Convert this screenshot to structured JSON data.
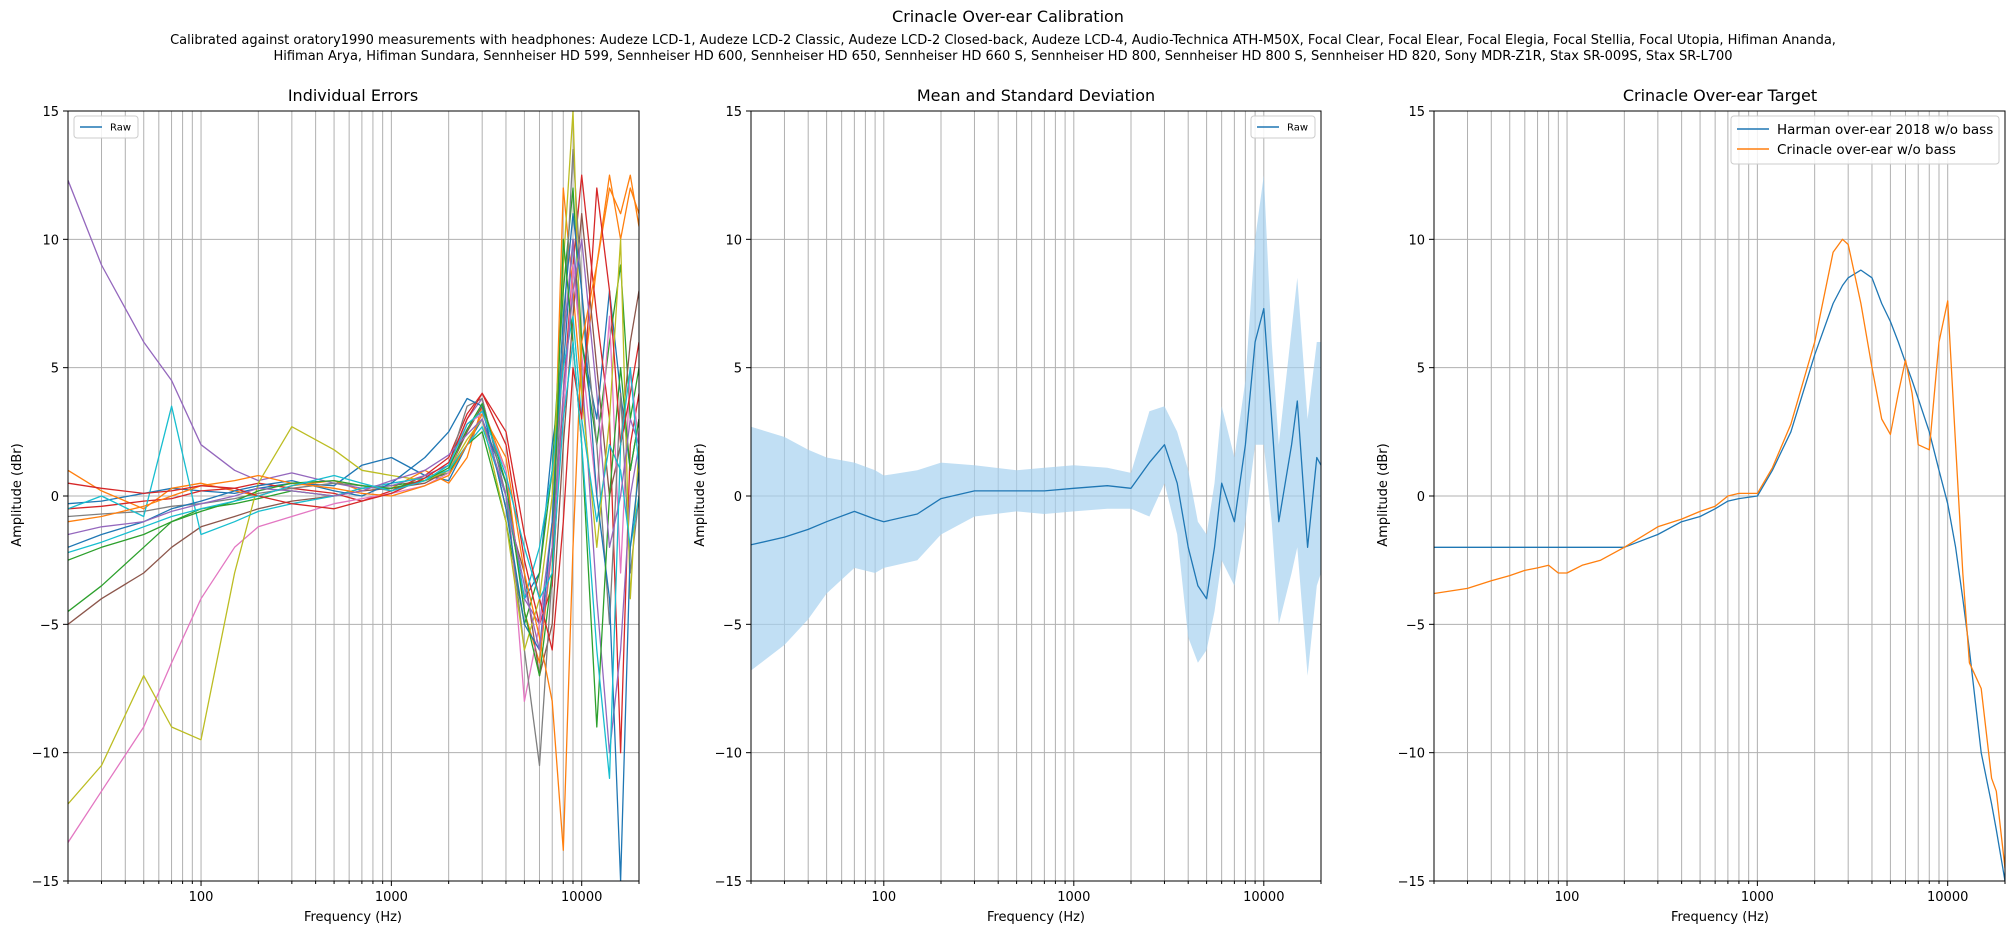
{
  "figure": {
    "title": "Crinacle Over-ear Calibration",
    "subtitle_line1": "Calibrated against oratory1990 measurements with headphones: Audeze LCD-1, Audeze LCD-2 Classic, Audeze LCD-2 Closed-back, Audeze LCD-4, Audio-Technica ATH-M50X, Focal Clear, Focal Elear, Focal Elegia, Focal Stellia, Focal Utopia, Hifiman Ananda,",
    "subtitle_line2": "Hifiman Arya, Hifiman Sundara, Sennheiser HD 599, Sennheiser HD 600, Sennheiser HD 650, Sennheiser HD 660 S, Sennheiser HD 800, Sennheiser HD 800 S, Sennheiser HD 820, Sony MDR-Z1R, Stax SR-009S, Stax SR-L700"
  },
  "colors": {
    "blue": "#1f77b4",
    "orange": "#ff7f0e",
    "green": "#2ca02c",
    "red": "#d62728",
    "purple": "#9467bd",
    "brown": "#8c564b",
    "pink": "#e377c2",
    "gray": "#7f7f7f",
    "olive": "#bcbd22",
    "cyan": "#17becf",
    "band": "#a6d2f0",
    "grid": "#b0b0b0"
  },
  "chart_data": [
    {
      "type": "line",
      "title": "Individual Errors",
      "xlabel": "Frequency (Hz)",
      "ylabel": "Amplitude (dBr)",
      "xscale": "log",
      "xlim": [
        20,
        20000
      ],
      "ylim": [
        -15,
        15
      ],
      "xticks": [
        "100",
        "1000",
        "10000"
      ],
      "yticks": [
        "15",
        "10",
        "5",
        "0",
        "−5",
        "−10",
        "−15"
      ],
      "grid": true,
      "legend": {
        "placement": "top-left",
        "entries": [
          "Raw"
        ]
      },
      "x": [
        20,
        30,
        50,
        70,
        100,
        150,
        200,
        300,
        500,
        700,
        1000,
        1500,
        2000,
        2500,
        3000,
        4000,
        5000,
        6000,
        7000,
        8000,
        9000,
        10000,
        12000,
        14000,
        16000,
        18000,
        20000
      ],
      "series": [
        {
          "color": "blue",
          "values": [
            -0.3,
            -0.2,
            0.1,
            0.3,
            0.2,
            0.1,
            0.3,
            0.5,
            0.4,
            1.2,
            1.5,
            0.8,
            0.6,
            2.0,
            3.0,
            0.5,
            -4.0,
            -3.0,
            2.0,
            5.0,
            10.0,
            6.0,
            3.0,
            8.0,
            4.0,
            1.0,
            3.0
          ]
        },
        {
          "color": "orange",
          "values": [
            1.0,
            0.2,
            -0.5,
            0.3,
            0.5,
            0.2,
            0.0,
            0.4,
            0.6,
            0.2,
            0.3,
            1.0,
            0.5,
            1.5,
            3.5,
            1.0,
            -4.5,
            -6.5,
            -2.0,
            12.0,
            8.0,
            4.0,
            9.0,
            12.5,
            10.0,
            12.0,
            11.0
          ]
        },
        {
          "color": "green",
          "values": [
            -4.5,
            -3.5,
            -2.0,
            -1.0,
            -0.5,
            -0.3,
            -0.1,
            0.2,
            0.0,
            0.3,
            0.4,
            0.6,
            0.9,
            2.0,
            2.5,
            -1.0,
            -5.0,
            -3.0,
            1.0,
            8.0,
            12.0,
            6.0,
            2.0,
            6.0,
            9.0,
            3.0,
            5.0
          ]
        },
        {
          "color": "red",
          "values": [
            -0.5,
            -0.4,
            -0.2,
            -0.1,
            0.2,
            0.3,
            0.5,
            0.3,
            0.1,
            -0.2,
            0.2,
            0.8,
            1.5,
            3.2,
            4.0,
            2.0,
            -2.5,
            -5.0,
            -3.5,
            4.0,
            9.0,
            12.5,
            7.0,
            3.0,
            -10.0,
            2.0,
            4.0
          ]
        },
        {
          "color": "purple",
          "values": [
            12.3,
            9.0,
            6.0,
            4.5,
            2.0,
            1.0,
            0.6,
            0.9,
            0.5,
            0.3,
            0.4,
            0.8,
            1.2,
            3.0,
            3.8,
            0.0,
            -4.0,
            -5.0,
            -1.0,
            6.0,
            10.0,
            5.0,
            -4.0,
            -10.0,
            -6.0,
            0.0,
            2.0
          ]
        },
        {
          "color": "brown",
          "values": [
            -5.0,
            -4.0,
            -3.0,
            -2.0,
            -1.2,
            -0.8,
            -0.5,
            -0.2,
            0.0,
            0.2,
            0.3,
            0.5,
            1.0,
            2.5,
            3.5,
            -0.5,
            -3.0,
            -7.0,
            -5.0,
            2.0,
            7.0,
            11.0,
            5.0,
            0.0,
            2.0,
            6.0,
            8.0
          ]
        },
        {
          "color": "pink",
          "values": [
            -13.5,
            -11.5,
            -9.0,
            -6.5,
            -4.0,
            -2.0,
            -1.2,
            -0.8,
            -0.3,
            -0.1,
            0.1,
            0.4,
            0.9,
            2.8,
            3.2,
            1.0,
            -8.0,
            -5.0,
            -2.0,
            3.0,
            9.0,
            5.5,
            0.0,
            7.0,
            -3.0,
            5.0,
            2.0
          ]
        },
        {
          "color": "gray",
          "values": [
            -0.8,
            -0.7,
            -0.6,
            -0.4,
            -0.3,
            -0.1,
            0.1,
            0.3,
            0.5,
            0.4,
            0.2,
            0.6,
            1.2,
            3.5,
            3.8,
            0.0,
            -6.0,
            -10.5,
            -3.0,
            6.0,
            13.5,
            8.0,
            2.0,
            -5.0,
            4.0,
            -3.0,
            0.0
          ]
        },
        {
          "color": "olive",
          "values": [
            -12.0,
            -10.5,
            -7.0,
            -9.0,
            -9.5,
            -3.0,
            0.5,
            2.7,
            1.8,
            1.0,
            0.8,
            0.6,
            1.0,
            2.2,
            3.0,
            -1.0,
            -6.0,
            -4.0,
            0.0,
            9.0,
            15.0,
            4.0,
            -2.0,
            3.0,
            10.0,
            -4.0,
            2.0
          ]
        },
        {
          "color": "cyan",
          "values": [
            -0.5,
            0.0,
            -0.8,
            3.5,
            -1.5,
            -1.0,
            -0.6,
            -0.3,
            0.0,
            0.3,
            0.5,
            0.7,
            1.0,
            2.0,
            2.7,
            0.0,
            -4.0,
            -2.0,
            1.0,
            5.0,
            7.0,
            3.0,
            -1.0,
            2.0,
            1.0,
            -2.0,
            0.0
          ]
        },
        {
          "color": "blue",
          "values": [
            -2.0,
            -1.5,
            -1.0,
            -0.5,
            -0.2,
            0.2,
            0.4,
            0.6,
            0.2,
            0.0,
            0.5,
            1.5,
            2.5,
            3.8,
            3.5,
            -0.5,
            -5.0,
            -6.0,
            -1.0,
            7.0,
            11.0,
            8.0,
            0.0,
            -4.0,
            -15.0,
            -2.0,
            1.0
          ]
        },
        {
          "color": "orange",
          "values": [
            -1.0,
            -0.8,
            -0.4,
            0.0,
            0.4,
            0.6,
            0.8,
            0.5,
            0.3,
            0.1,
            0.0,
            0.4,
            0.8,
            2.0,
            3.2,
            1.5,
            -3.0,
            -5.5,
            -8.0,
            -13.8,
            -2.0,
            6.0,
            9.0,
            12.0,
            11.0,
            12.5,
            10.5
          ]
        },
        {
          "color": "green",
          "values": [
            -2.5,
            -2.0,
            -1.5,
            -1.0,
            -0.6,
            -0.2,
            0.2,
            0.5,
            0.6,
            0.4,
            0.3,
            0.6,
            1.1,
            2.6,
            3.6,
            0.5,
            -4.5,
            -7.0,
            -3.0,
            10.0,
            6.0,
            2.0,
            -9.0,
            0.0,
            5.0,
            1.0,
            3.0
          ]
        },
        {
          "color": "red",
          "values": [
            0.5,
            0.3,
            0.1,
            0.2,
            0.4,
            0.3,
            0.0,
            -0.3,
            -0.5,
            -0.2,
            0.1,
            0.7,
            1.3,
            3.0,
            4.0,
            2.5,
            -1.5,
            -4.0,
            -6.0,
            -1.0,
            5.0,
            3.0,
            12.0,
            8.0,
            2.0,
            4.0,
            6.0
          ]
        },
        {
          "color": "purple",
          "values": [
            -1.5,
            -1.2,
            -1.0,
            -0.6,
            -0.3,
            0.0,
            0.3,
            0.2,
            0.0,
            0.2,
            0.6,
            1.0,
            1.6,
            2.4,
            3.0,
            0.0,
            -3.5,
            -6.0,
            -2.0,
            4.0,
            8.0,
            10.0,
            4.0,
            -2.0,
            0.0,
            3.0,
            2.0
          ]
        },
        {
          "color": "cyan",
          "values": [
            -2.2,
            -1.8,
            -1.2,
            -0.8,
            -0.5,
            -0.2,
            0.0,
            0.4,
            0.8,
            0.5,
            0.2,
            0.6,
            1.2,
            2.8,
            3.3,
            0.8,
            -2.0,
            -4.0,
            -3.0,
            3.0,
            6.0,
            2.0,
            -6.0,
            -11.0,
            2.0,
            5.0,
            1.0
          ]
        }
      ]
    },
    {
      "type": "line",
      "title": "Mean and Standard Deviation",
      "xlabel": "Frequency (Hz)",
      "ylabel": "Amplitude (dBr)",
      "xscale": "log",
      "xlim": [
        20,
        20000
      ],
      "ylim": [
        -15,
        15
      ],
      "xticks": [
        "100",
        "1000",
        "10000"
      ],
      "yticks": [
        "15",
        "10",
        "5",
        "0",
        "−5",
        "−10",
        "−15"
      ],
      "grid": true,
      "legend": {
        "placement": "top-right",
        "entries": [
          "Raw"
        ]
      },
      "x": [
        20,
        30,
        40,
        50,
        70,
        90,
        100,
        150,
        200,
        300,
        500,
        700,
        1000,
        1500,
        2000,
        2500,
        3000,
        3500,
        4000,
        4500,
        5000,
        5500,
        6000,
        7000,
        8000,
        9000,
        10000,
        11000,
        12000,
        14000,
        15000,
        17000,
        19000,
        20000
      ],
      "series": [
        {
          "name": "Raw",
          "color": "blue",
          "values": [
            -1.9,
            -1.6,
            -1.3,
            -1.0,
            -0.6,
            -0.9,
            -1.0,
            -0.7,
            -0.1,
            0.2,
            0.2,
            0.2,
            0.3,
            0.4,
            0.3,
            1.3,
            2.0,
            0.5,
            -2.0,
            -3.5,
            -4.0,
            -2.0,
            0.5,
            -1.0,
            2.0,
            6.0,
            7.3,
            3.0,
            -1.0,
            2.0,
            3.7,
            -2.0,
            1.5,
            1.2
          ]
        }
      ],
      "band": {
        "upper": [
          2.7,
          2.3,
          1.8,
          1.5,
          1.3,
          1.0,
          0.8,
          1.0,
          1.3,
          1.2,
          1.0,
          1.1,
          1.2,
          1.1,
          0.9,
          3.3,
          3.5,
          2.5,
          1.0,
          -1.0,
          -1.5,
          0.5,
          3.5,
          1.5,
          4.5,
          10.0,
          12.5,
          6.0,
          2.0,
          6.5,
          8.5,
          3.0,
          6.0,
          6.0
        ],
        "lower": [
          -6.8,
          -5.8,
          -4.8,
          -3.8,
          -2.8,
          -3.0,
          -2.8,
          -2.5,
          -1.5,
          -0.8,
          -0.6,
          -0.7,
          -0.6,
          -0.5,
          -0.5,
          -0.8,
          0.5,
          -1.5,
          -5.5,
          -6.5,
          -6.0,
          -4.5,
          -2.5,
          -3.5,
          -1.0,
          2.0,
          2.0,
          -1.0,
          -5.0,
          -3.0,
          -2.0,
          -7.0,
          -3.5,
          -3.0
        ]
      }
    },
    {
      "type": "line",
      "title": "Crinacle Over-ear Target",
      "xlabel": "Frequency (Hz)",
      "ylabel": "Amplitude (dBr)",
      "xscale": "log",
      "xlim": [
        20,
        20000
      ],
      "ylim": [
        -15,
        15
      ],
      "xticks": [
        "100",
        "1000",
        "10000"
      ],
      "yticks": [
        "15",
        "10",
        "5",
        "0",
        "−5",
        "−10",
        "−15"
      ],
      "grid": true,
      "legend": {
        "placement": "top-right",
        "entries": [
          "Harman over-ear 2018 w/o bass",
          "Crinacle over-ear w/o bass"
        ]
      },
      "x": [
        20,
        30,
        40,
        50,
        60,
        70,
        80,
        90,
        100,
        120,
        150,
        200,
        300,
        400,
        500,
        600,
        700,
        800,
        1000,
        1200,
        1500,
        2000,
        2500,
        2800,
        3000,
        3500,
        4000,
        4500,
        5000,
        5500,
        6000,
        6500,
        7000,
        8000,
        9000,
        10000,
        11000,
        12000,
        13000,
        15000,
        17000,
        18000,
        20000
      ],
      "series": [
        {
          "name": "Harman over-ear 2018 w/o bass",
          "color": "blue",
          "values": [
            -2.0,
            -2.0,
            -2.0,
            -2.0,
            -2.0,
            -2.0,
            -2.0,
            -2.0,
            -2.0,
            -2.0,
            -2.0,
            -2.0,
            -1.5,
            -1.0,
            -0.8,
            -0.5,
            -0.2,
            -0.1,
            0.0,
            1.0,
            2.5,
            5.5,
            7.5,
            8.2,
            8.5,
            8.8,
            8.5,
            7.5,
            6.8,
            6.0,
            5.2,
            4.5,
            3.8,
            2.5,
            1.0,
            -0.3,
            -2.0,
            -4.0,
            -6.0,
            -10.0,
            -12.0,
            -13.0,
            -15.0
          ]
        },
        {
          "name": "Crinacle over-ear w/o bass",
          "color": "orange",
          "values": [
            -3.8,
            -3.6,
            -3.3,
            -3.1,
            -2.9,
            -2.8,
            -2.7,
            -3.0,
            -3.0,
            -2.7,
            -2.5,
            -2.0,
            -1.2,
            -0.9,
            -0.6,
            -0.4,
            0.0,
            0.1,
            0.1,
            1.1,
            2.8,
            6.0,
            9.5,
            10.0,
            9.8,
            7.5,
            5.0,
            3.0,
            2.4,
            4.0,
            5.3,
            4.0,
            2.0,
            1.8,
            6.0,
            7.6,
            2.0,
            -3.0,
            -6.5,
            -7.5,
            -11.0,
            -11.5,
            -14.5
          ]
        }
      ]
    }
  ]
}
